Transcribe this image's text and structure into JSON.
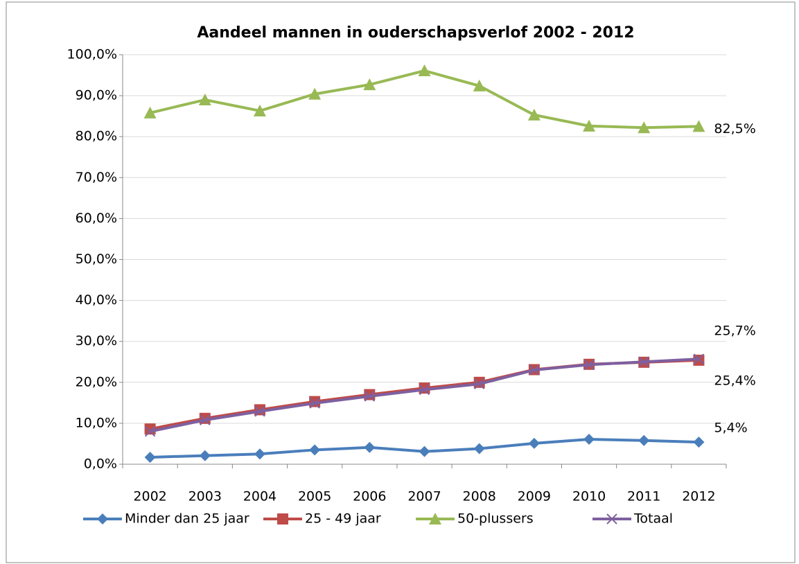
{
  "chart_data": {
    "type": "line",
    "title": "Aandeel mannen in ouderschapsverlof  2002 - 2012",
    "categories": [
      "2002",
      "2003",
      "2004",
      "2005",
      "2006",
      "2007",
      "2008",
      "2009",
      "2010",
      "2011",
      "2012"
    ],
    "series": [
      {
        "name": "Minder dan 25 jaar",
        "color": "#4a7ebb",
        "marker": "diamond",
        "values": [
          1.7,
          2.1,
          2.5,
          3.5,
          4.1,
          3.1,
          3.8,
          5.1,
          6.1,
          5.8,
          5.4
        ],
        "value_labels": [
          null,
          null,
          null,
          null,
          null,
          null,
          null,
          null,
          null,
          null,
          "5,4%"
        ]
      },
      {
        "name": "25 - 49 jaar",
        "color": "#be4b48",
        "marker": "square",
        "values": [
          8.6,
          11.2,
          13.3,
          15.3,
          17.0,
          18.6,
          20.0,
          23.1,
          24.4,
          24.9,
          25.4
        ],
        "value_labels": [
          null,
          null,
          null,
          null,
          null,
          null,
          null,
          null,
          null,
          null,
          "25,4%"
        ]
      },
      {
        "name": "50-plussers",
        "color": "#98b954",
        "marker": "triangle",
        "values": [
          85.8,
          89.0,
          86.3,
          90.4,
          92.7,
          96.1,
          92.4,
          85.3,
          82.6,
          82.2,
          82.5
        ],
        "value_labels": [
          null,
          null,
          null,
          null,
          null,
          null,
          null,
          null,
          null,
          null,
          "82,5%"
        ]
      },
      {
        "name": "Totaal",
        "color": "#7d60a0",
        "marker": "x",
        "values": [
          8.0,
          10.8,
          12.9,
          14.9,
          16.6,
          18.2,
          19.6,
          23.0,
          24.3,
          25.0,
          25.7
        ],
        "value_labels": [
          null,
          null,
          null,
          null,
          null,
          null,
          null,
          null,
          null,
          null,
          "25,7%"
        ]
      }
    ],
    "ylim": [
      0,
      100
    ],
    "yticks": [
      {
        "value": 0,
        "label": "0,0%"
      },
      {
        "value": 10,
        "label": "10,0%"
      },
      {
        "value": 20,
        "label": "20,0%"
      },
      {
        "value": 30,
        "label": "30,0%"
      },
      {
        "value": 40,
        "label": "40,0%"
      },
      {
        "value": 50,
        "label": "50,0%"
      },
      {
        "value": 60,
        "label": "60,0%"
      },
      {
        "value": 70,
        "label": "70,0%"
      },
      {
        "value": 80,
        "label": "80,0%"
      },
      {
        "value": 90,
        "label": "90,0%"
      },
      {
        "value": 100,
        "label": "100,0%"
      }
    ],
    "grid": true,
    "legend": "bottom"
  }
}
